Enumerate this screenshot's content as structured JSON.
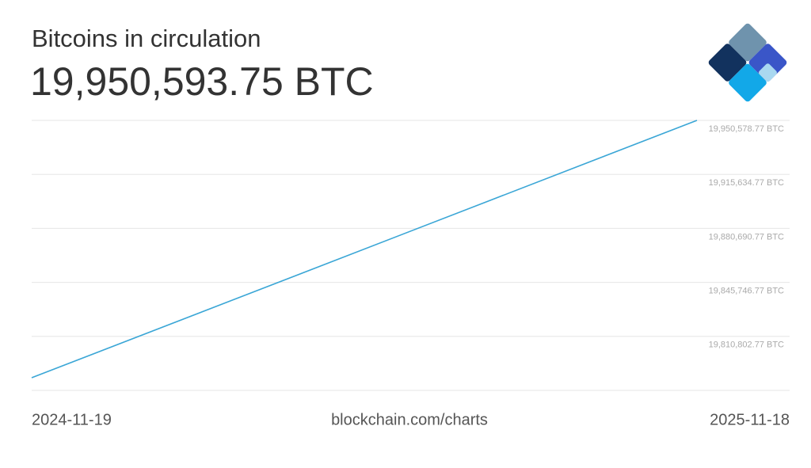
{
  "chart_data": {
    "type": "line",
    "title": "Bitcoins in circulation",
    "headline_value": "19,950,593.75 BTC",
    "source": "blockchain.com/charts",
    "x": [
      "2024-11-19",
      "2025-11-18"
    ],
    "series": [
      {
        "name": "Bitcoins in circulation",
        "color": "#3aa6d6",
        "values": [
          19784033,
          19950578.77
        ]
      }
    ],
    "ylim": [
      19775858.77,
      19950578.77
    ],
    "yticks": [
      {
        "value": 19950578.77,
        "label": "19,950,578.77 BTC"
      },
      {
        "value": 19915634.77,
        "label": "19,915,634.77 BTC"
      },
      {
        "value": 19880690.77,
        "label": "19,880,690.77 BTC"
      },
      {
        "value": 19845746.77,
        "label": "19,845,746.77 BTC"
      },
      {
        "value": 19810802.77,
        "label": "19,810,802.77 BTC"
      }
    ],
    "grid": true
  }
}
